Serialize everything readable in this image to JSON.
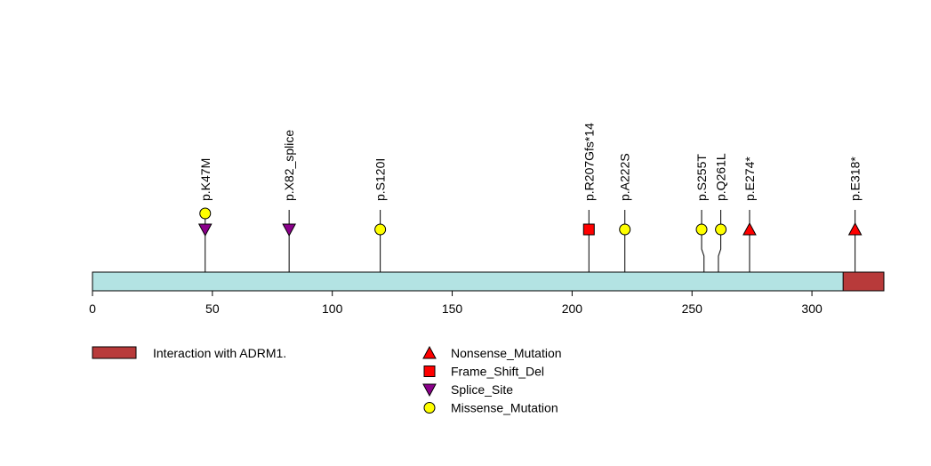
{
  "chart_data": {
    "type": "lollipop",
    "protein_length": 330,
    "xlim": [
      0,
      330
    ],
    "x_ticks": [
      0,
      50,
      100,
      150,
      200,
      250,
      300
    ],
    "domains": [
      {
        "name": "Interaction with ADRM1.",
        "start": 313,
        "end": 330,
        "color": "#b83a3a"
      }
    ],
    "backbone_color": "#b3e3e3",
    "mutations": [
      {
        "label": "p.K47M",
        "position": 47,
        "type": "Missense_Mutation",
        "level": 2
      },
      {
        "label": "",
        "position": 47,
        "type": "Splice_Site",
        "level": 1
      },
      {
        "label": "p.X82_splice",
        "position": 82,
        "type": "Splice_Site",
        "level": 1
      },
      {
        "label": "p.S120I",
        "position": 120,
        "type": "Missense_Mutation",
        "level": 1
      },
      {
        "label": "p.R207Gfs*14",
        "position": 207,
        "type": "Frame_Shift_Del",
        "level": 1
      },
      {
        "label": "p.A222S",
        "position": 222,
        "type": "Missense_Mutation",
        "level": 1
      },
      {
        "label": "p.S255T",
        "position": 255,
        "label_position": 254,
        "type": "Missense_Mutation",
        "level": 1
      },
      {
        "label": "p.Q261L",
        "position": 261,
        "label_position": 262,
        "type": "Missense_Mutation",
        "level": 1
      },
      {
        "label": "p.E274*",
        "position": 274,
        "type": "Nonsense_Mutation",
        "level": 1
      },
      {
        "label": "p.E318*",
        "position": 318,
        "type": "Nonsense_Mutation",
        "level": 1
      }
    ],
    "mutation_types": [
      {
        "name": "Nonsense_Mutation",
        "shape": "triangle-up",
        "color": "#ff0000"
      },
      {
        "name": "Frame_Shift_Del",
        "shape": "square",
        "color": "#ff0000"
      },
      {
        "name": "Splice_Site",
        "shape": "triangle-down",
        "color": "#8b008b"
      },
      {
        "name": "Missense_Mutation",
        "shape": "circle",
        "color": "#ffff00"
      }
    ]
  }
}
